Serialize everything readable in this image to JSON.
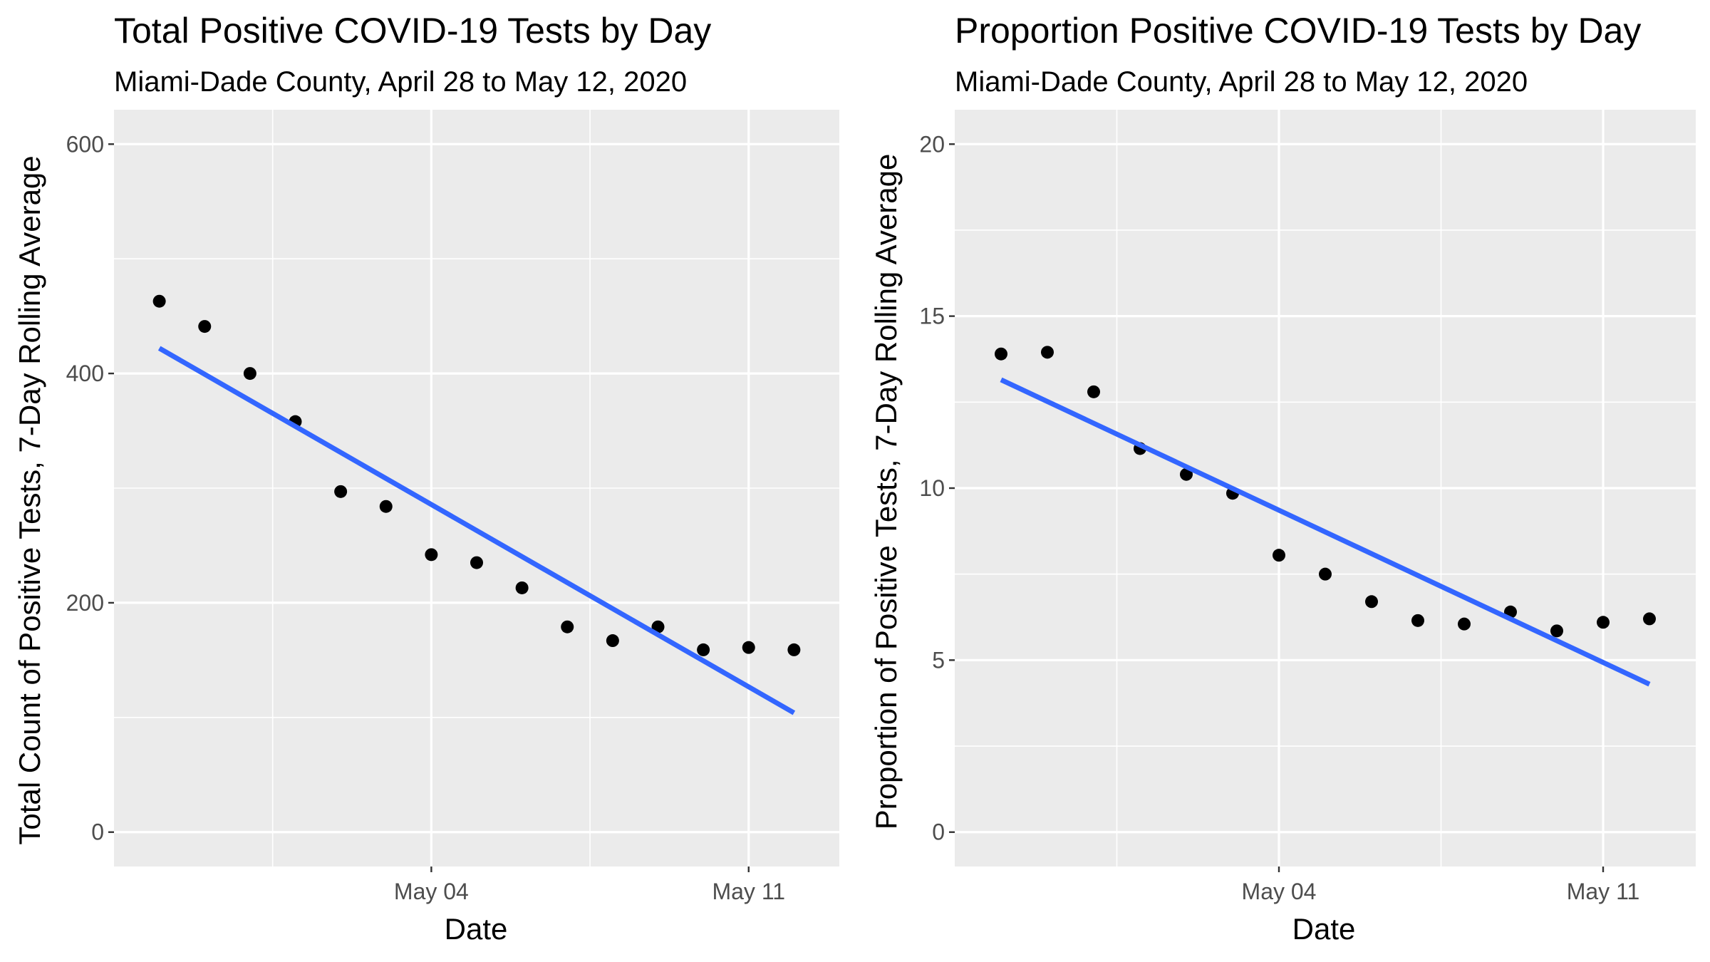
{
  "charts": {
    "left": {
      "title": "Total Positive COVID-19 Tests by Day",
      "subtitle": "Miami-Dade County, April 28 to May 12, 2020",
      "xlabel": "Date",
      "ylabel": "Total Count of Positive Tests, 7-Day Rolling Average",
      "yticks": [
        "0",
        "200",
        "400",
        "600"
      ],
      "xticks": [
        "May 04",
        "May 11"
      ]
    },
    "right": {
      "title": "Proportion Positive COVID-19 Tests by Day",
      "subtitle": "Miami-Dade County, April 28 to May 12, 2020",
      "xlabel": "Date",
      "ylabel": "Proportion of Positive Tests, 7-Day Rolling Average",
      "yticks": [
        "0",
        "5",
        "10",
        "15",
        "20"
      ],
      "xticks": [
        "May 04",
        "May 11"
      ]
    }
  },
  "chart_data": [
    {
      "type": "scatter",
      "title": "Total Positive COVID-19 Tests by Day",
      "subtitle": "Miami-Dade County, April 28 to May 12, 2020",
      "xlabel": "Date",
      "ylabel": "Total Count of Positive Tests, 7-Day Rolling Average",
      "x": [
        "2020-04-28",
        "2020-04-29",
        "2020-04-30",
        "2020-05-01",
        "2020-05-02",
        "2020-05-03",
        "2020-05-04",
        "2020-05-05",
        "2020-05-06",
        "2020-05-07",
        "2020-05-08",
        "2020-05-09",
        "2020-05-10",
        "2020-05-11",
        "2020-05-12"
      ],
      "y": [
        463,
        441,
        400,
        358,
        297,
        284,
        242,
        235,
        213,
        179,
        167,
        179,
        159,
        161,
        159
      ],
      "trend_line": {
        "type": "linear",
        "color": "#3366ff",
        "start": [
          "2020-04-28",
          422
        ],
        "end": [
          "2020-05-12",
          104
        ]
      },
      "xlim": [
        "2020-04-27",
        "2020-05-13"
      ],
      "ylim": [
        -30,
        630
      ],
      "yticks": [
        0,
        200,
        400,
        600
      ],
      "xticks": [
        "2020-05-04",
        "2020-05-11"
      ],
      "grid": true,
      "panel_background": "#ebebeb",
      "point_color": "#000000"
    },
    {
      "type": "scatter",
      "title": "Proportion Positive COVID-19 Tests by Day",
      "subtitle": "Miami-Dade County, April 28 to May 12, 2020",
      "xlabel": "Date",
      "ylabel": "Proportion of Positive Tests, 7-Day Rolling Average",
      "x": [
        "2020-04-28",
        "2020-04-29",
        "2020-04-30",
        "2020-05-01",
        "2020-05-02",
        "2020-05-03",
        "2020-05-04",
        "2020-05-05",
        "2020-05-06",
        "2020-05-07",
        "2020-05-08",
        "2020-05-09",
        "2020-05-10",
        "2020-05-11",
        "2020-05-12"
      ],
      "y": [
        13.9,
        13.95,
        12.8,
        11.15,
        10.4,
        9.85,
        8.05,
        7.5,
        6.7,
        6.15,
        6.05,
        6.4,
        5.85,
        6.1,
        6.2
      ],
      "trend_line": {
        "type": "linear",
        "color": "#3366ff",
        "start": [
          "2020-04-28",
          13.15
        ],
        "end": [
          "2020-05-12",
          4.3
        ]
      },
      "xlim": [
        "2020-04-27",
        "2020-05-13"
      ],
      "ylim": [
        -1,
        21
      ],
      "yticks": [
        0,
        5,
        10,
        15,
        20
      ],
      "xticks": [
        "2020-05-04",
        "2020-05-11"
      ],
      "grid": true,
      "panel_background": "#ebebeb",
      "point_color": "#000000"
    }
  ]
}
